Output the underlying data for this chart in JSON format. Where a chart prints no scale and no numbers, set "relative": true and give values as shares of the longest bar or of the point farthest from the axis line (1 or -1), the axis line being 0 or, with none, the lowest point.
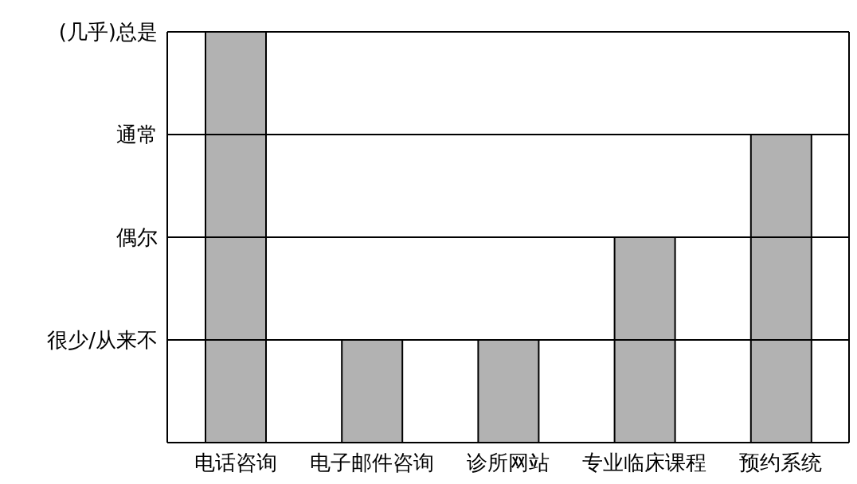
{
  "chart_data": {
    "type": "bar",
    "categories": [
      "电话咨询",
      "电子邮件咨询",
      "诊所网站",
      "专业临床课程",
      "预约系统"
    ],
    "values": [
      1,
      0.25,
      0.25,
      0.5,
      0.75
    ],
    "color": "#b2b2b2",
    "relative": true,
    "ref_lines": [
      {
        "axis": "y",
        "value": 0.25,
        "label": "很少/从来不"
      },
      {
        "axis": "y",
        "value": 0.5,
        "label": "偶尔"
      },
      {
        "axis": "y",
        "value": 0.75,
        "label": "通常"
      },
      {
        "axis": "y",
        "value": 1,
        "label": "(几乎)总是"
      }
    ]
  }
}
